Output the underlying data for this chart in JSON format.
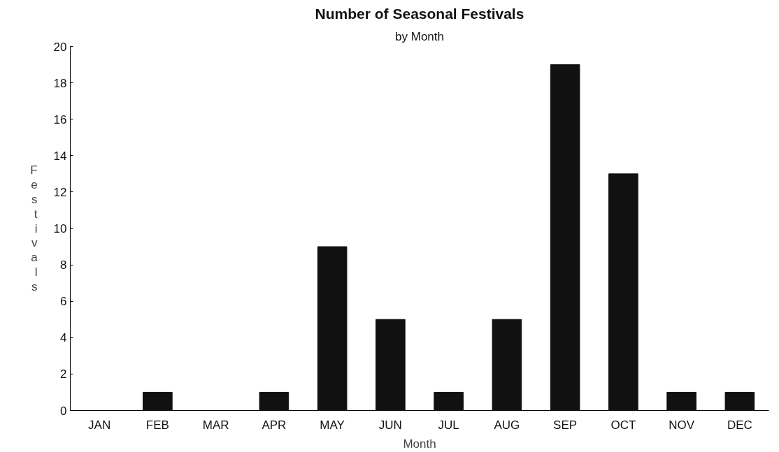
{
  "chart_data": {
    "type": "bar",
    "title": "Number of Seasonal Festivals",
    "subtitle": "by Month",
    "xlabel": "Month",
    "ylabel": "Festivals",
    "categories": [
      "JAN",
      "FEB",
      "MAR",
      "APR",
      "MAY",
      "JUN",
      "JUL",
      "AUG",
      "SEP",
      "OCT",
      "NOV",
      "DEC"
    ],
    "values": [
      0,
      1,
      0,
      1,
      9,
      5,
      1,
      5,
      19,
      13,
      1,
      1
    ],
    "color": "#111111",
    "ylim": [
      0,
      20
    ],
    "yticks": [
      0,
      2,
      4,
      6,
      8,
      10,
      12,
      14,
      16,
      18,
      20
    ],
    "grid": false
  }
}
